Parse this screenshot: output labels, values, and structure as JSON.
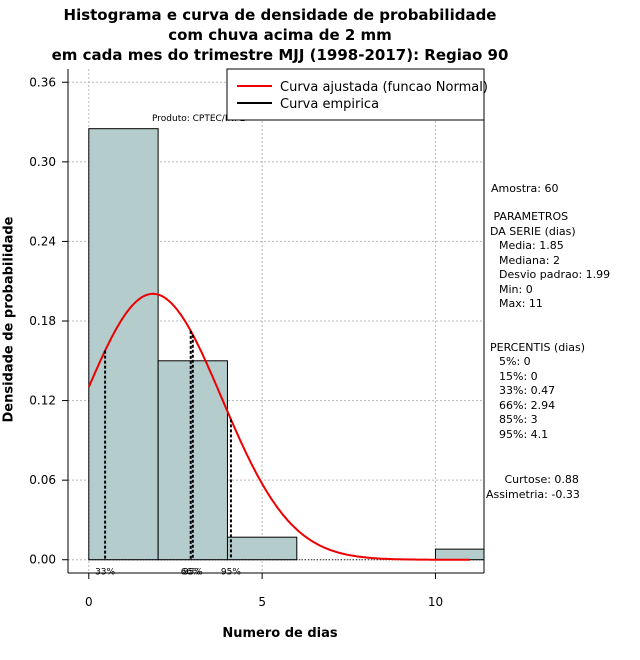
{
  "chart_data": {
    "type": "bar",
    "title_lines": [
      "Histograma e curva de densidade de probabilidade",
      "com chuva acima de 2 mm",
      "em cada mes do trimestre MJJ (1998-2017): Regiao 90"
    ],
    "xlabel": "Numero de dias",
    "ylabel": "Densidade de probabilidade",
    "xlim": [
      -0.6,
      11.4
    ],
    "ylim": [
      -0.01,
      0.37
    ],
    "xticks": [
      0,
      5,
      10
    ],
    "yticks": [
      0.0,
      0.06,
      0.12,
      0.18,
      0.24,
      0.3,
      0.36
    ],
    "ytick_labels": [
      "0.00",
      "0.06",
      "0.12",
      "0.18",
      "0.24",
      "0.30",
      "0.36"
    ],
    "grid": true,
    "bins": [
      {
        "start": 0,
        "end": 2,
        "density": 0.325
      },
      {
        "start": 2,
        "end": 4,
        "density": 0.15
      },
      {
        "start": 4,
        "end": 6,
        "density": 0.017
      },
      {
        "start": 6,
        "end": 8,
        "density": 0.0
      },
      {
        "start": 8,
        "end": 10,
        "density": 0.0
      },
      {
        "start": 10,
        "end": 12,
        "density": 0.008
      }
    ],
    "normal_curve": {
      "mean": 1.85,
      "sd": 1.99,
      "x_from": 0,
      "x_to": 11
    },
    "percentile_lines": [
      {
        "x": 0.47,
        "label": "33%"
      },
      {
        "x": 2.94,
        "label": "66%"
      },
      {
        "x": 3,
        "label": "85%"
      },
      {
        "x": 4.1,
        "label": "95%"
      }
    ],
    "legend": [
      {
        "label": "Curva ajustada (funcao Normal)",
        "color": "#ee0000"
      },
      {
        "label": "Curva empirica",
        "color": "#000000"
      }
    ],
    "legend_position": "top-right",
    "product_label": "Produto: CPTEC/INPE",
    "bar_color": "#b4cccc",
    "curve_color": "#ee0000"
  },
  "stats": {
    "amostra": "Amostra: 60",
    "parametros_title": " PARAMETROS\nDA SERIE (dias)",
    "parametros": "  Media: 1.85\n  Mediana: 2\n  Desvio padrao: 1.99\n  Min: 0\n  Max: 11",
    "percentis_title": "PERCENTIS (dias)",
    "percentis": "  5%: 0\n  15%: 0\n  33%: 0.47\n  66%: 2.94\n  85%: 3\n  95%: 4.1",
    "curtose": "   Curtose: 0.88",
    "assimetria": "Assimetria: -0.33"
  }
}
